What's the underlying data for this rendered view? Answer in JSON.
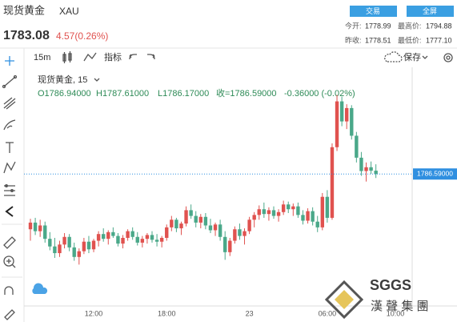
{
  "header": {
    "symbol_name": "现货黄金",
    "symbol_code": "XAU",
    "price": "1783.08",
    "change": "4.57(0.26%)",
    "buttons": [
      "交易",
      "全屏"
    ],
    "stats": [
      {
        "label": "今开:",
        "value": "1778.99"
      },
      {
        "label": "最高价:",
        "value": "1794.88"
      },
      {
        "label": "昨收:",
        "value": "1778.51"
      },
      {
        "label": "最低价:",
        "value": "1777.10"
      }
    ]
  },
  "toolbar": {
    "interval": "15m",
    "indicators": "指标",
    "save": "保存"
  },
  "watermark": {
    "logo": "SGGS",
    "company": "漢 聲 集 團"
  },
  "chart_data": {
    "type": "candlestick",
    "title": "现货黄金, 15",
    "legend": [
      "O1786.94000",
      "H1787.61000",
      "L1786.17000",
      "收=1786.59000",
      "-0.36000 (-0.02%)"
    ],
    "categories": [
      null,
      null,
      null,
      null,
      null,
      null,
      null,
      null,
      null,
      null,
      null,
      null,
      null,
      "12:00",
      null,
      null,
      null,
      null,
      null,
      null,
      null,
      null,
      null,
      null,
      null,
      null,
      null,
      null,
      "18:00",
      null,
      null,
      null,
      null,
      null,
      null,
      null,
      null,
      null,
      null,
      null,
      null,
      null,
      null,
      null,
      null,
      "23",
      null,
      null,
      null,
      null,
      null,
      null,
      null,
      null,
      null,
      null,
      null,
      null,
      null,
      null,
      null,
      "06:00",
      null,
      null,
      null,
      null,
      null,
      null,
      null,
      null,
      null,
      null,
      null,
      null,
      null,
      "10:00"
    ],
    "series": [
      {
        "name": "open",
        "values": [
          1780.8,
          1781.5,
          1780.6,
          1781.2,
          1779.8,
          1779.0,
          1778.3,
          1779.2,
          1780.0,
          1778.9,
          1777.9,
          1778.5,
          1779.5,
          1778.7,
          1779.6,
          1780.3,
          1779.8,
          1780.5,
          1780.1,
          1779.3,
          1779.9,
          1780.6,
          1780.0,
          1779.4,
          1779.8,
          1780.2,
          1779.7,
          1779.5,
          1779.9,
          1781.0,
          1781.8,
          1780.9,
          1781.4,
          1782.8,
          1782.2,
          1781.5,
          1782.1,
          1781.2,
          1780.7,
          1781.3,
          1780.0,
          1778.4,
          1779.6,
          1780.8,
          1780.1,
          1780.6,
          1781.8,
          1782.3,
          1782.9,
          1782.4,
          1782.8,
          1782.2,
          1782.6,
          1783.4,
          1782.9,
          1783.2,
          1782.3,
          1781.7,
          1782.7,
          1781.6,
          1781.0,
          1784.2,
          1782.0,
          1789.4,
          1794.2,
          1792.1,
          1793.5,
          1790.6,
          1788.3,
          1786.9,
          1787.3,
          1786.94,
          null,
          null,
          null,
          null
        ]
      },
      {
        "name": "high",
        "values": [
          1781.9,
          1782.0,
          1781.8,
          1781.6,
          1780.5,
          1779.9,
          1779.6,
          1780.4,
          1780.3,
          1779.4,
          1778.8,
          1779.9,
          1780.1,
          1779.8,
          1780.6,
          1780.9,
          1780.7,
          1781.0,
          1780.4,
          1780.2,
          1780.8,
          1781.0,
          1780.5,
          1780.1,
          1780.4,
          1780.6,
          1780.3,
          1780.1,
          1781.3,
          1782.2,
          1782.0,
          1781.6,
          1783.2,
          1783.4,
          1782.7,
          1782.4,
          1782.5,
          1781.9,
          1781.5,
          1781.8,
          1780.6,
          1779.9,
          1781.1,
          1781.4,
          1780.9,
          1782.1,
          1782.6,
          1783.3,
          1783.6,
          1783.1,
          1783.2,
          1782.9,
          1783.8,
          1783.7,
          1783.5,
          1783.6,
          1782.8,
          1783.0,
          1783.1,
          1782.2,
          1784.6,
          1784.9,
          1789.8,
          1794.88,
          1794.7,
          1793.9,
          1793.8,
          1791.0,
          1788.9,
          1787.8,
          1787.9,
          1787.61,
          null,
          null,
          null,
          null
        ]
      },
      {
        "name": "low",
        "values": [
          1779.6,
          1780.2,
          1780.0,
          1779.4,
          1778.6,
          1777.8,
          1777.9,
          1778.8,
          1778.5,
          1777.5,
          1777.1,
          1778.2,
          1778.3,
          1778.4,
          1779.0,
          1779.5,
          1779.2,
          1779.9,
          1779.0,
          1778.8,
          1779.6,
          1779.7,
          1779.1,
          1778.9,
          1779.3,
          1779.4,
          1779.0,
          1778.9,
          1779.6,
          1780.6,
          1780.5,
          1780.2,
          1781.1,
          1781.9,
          1781.0,
          1780.9,
          1780.8,
          1780.4,
          1780.1,
          1779.6,
          1777.6,
          1778.0,
          1779.3,
          1779.7,
          1779.2,
          1780.3,
          1781.0,
          1781.8,
          1782.0,
          1781.7,
          1781.9,
          1781.6,
          1782.3,
          1782.5,
          1782.2,
          1782.0,
          1781.3,
          1781.4,
          1781.2,
          1780.5,
          1780.7,
          1781.5,
          1781.8,
          1789.0,
          1791.6,
          1791.3,
          1790.2,
          1787.8,
          1786.4,
          1785.8,
          1786.6,
          1786.17,
          null,
          null,
          null,
          null
        ]
      },
      {
        "name": "close",
        "values": [
          1781.5,
          1780.6,
          1781.2,
          1779.8,
          1779.0,
          1778.3,
          1779.2,
          1780.0,
          1778.9,
          1777.9,
          1778.5,
          1779.5,
          1778.7,
          1779.6,
          1780.3,
          1779.8,
          1780.5,
          1780.1,
          1779.3,
          1779.9,
          1780.6,
          1780.0,
          1779.4,
          1779.8,
          1780.2,
          1779.7,
          1779.5,
          1779.9,
          1781.0,
          1781.8,
          1780.9,
          1781.4,
          1782.8,
          1782.2,
          1781.5,
          1782.1,
          1781.2,
          1780.7,
          1781.3,
          1780.0,
          1778.4,
          1779.6,
          1780.8,
          1780.1,
          1780.6,
          1781.8,
          1782.3,
          1782.9,
          1782.4,
          1782.8,
          1782.2,
          1782.6,
          1783.4,
          1782.9,
          1783.2,
          1782.3,
          1781.7,
          1782.7,
          1781.6,
          1781.0,
          1784.2,
          1782.0,
          1789.4,
          1794.2,
          1792.1,
          1793.5,
          1790.6,
          1788.3,
          1786.9,
          1787.3,
          1786.94,
          1786.59,
          null,
          null,
          null,
          null
        ]
      }
    ],
    "up_color": "#e0524f",
    "down_color": "#4aa889",
    "last_price": {
      "value": 1786.59,
      "label": "1786.59000"
    },
    "last_price_color": "#2f8fe0",
    "ylim": [
      1773.1,
      1797.1
    ]
  }
}
